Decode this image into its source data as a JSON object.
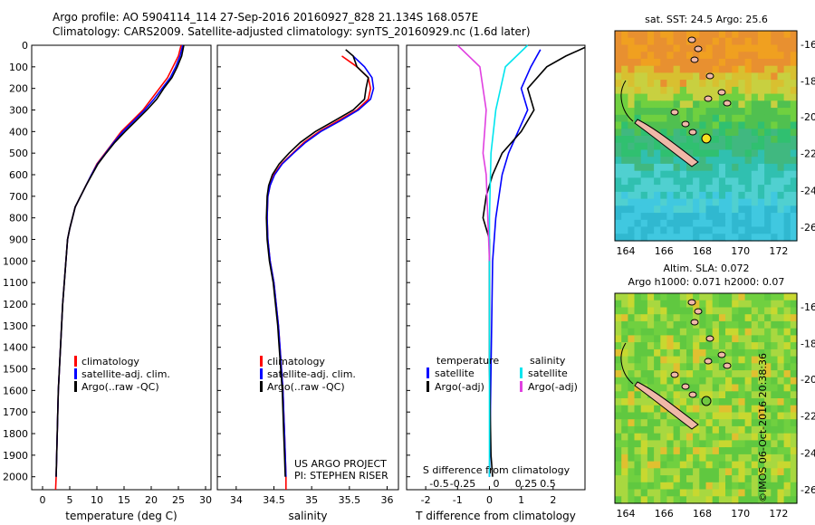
{
  "header": {
    "line1": "Argo profile: AO 5904114_114 27-Sep-2016 20160927_828 21.134S 168.057E",
    "line2": "Climatology: CARS2009. Satellite-adjusted climatology: synTS_20160929.nc (1.6d later)"
  },
  "colors": {
    "climatology": "#ff0000",
    "satellite": "#0000ff",
    "argo": "#000000",
    "sat_salinity": "#00e5ee",
    "argo_salinity": "#e040e0"
  },
  "depth_axis": {
    "ticks": [
      "0",
      "100",
      "200",
      "300",
      "400",
      "500",
      "600",
      "700",
      "800",
      "900",
      "1000",
      "1100",
      "1200",
      "1300",
      "1400",
      "1500",
      "1600",
      "1700",
      "1800",
      "1900",
      "2000"
    ],
    "range": [
      0,
      2060
    ]
  },
  "temp_panel": {
    "xlabel": "temperature (deg C)",
    "xticks": [
      "0",
      "5",
      "10",
      "15",
      "20",
      "25",
      "30"
    ],
    "xlim": [
      -2,
      31
    ],
    "legend": [
      "climatology",
      "satellite-adj. clim.",
      "Argo(..raw -QC)"
    ]
  },
  "sal_panel": {
    "xlabel": "salinity",
    "xticks": [
      "34",
      "34.5",
      "35",
      "35.5",
      "36"
    ],
    "xlim": [
      33.75,
      36.15
    ],
    "legend": [
      "climatology",
      "satellite-adj. clim.",
      "Argo(..raw -QC)"
    ],
    "credit1": "US ARGO PROJECT",
    "credit2": "PI: STEPHEN RISER"
  },
  "diff_panel": {
    "xlabel": "T difference from climatology",
    "xticks": [
      "-2",
      "-1",
      "0",
      "1",
      "2"
    ],
    "xlim": [
      -2.6,
      3.0
    ],
    "s_label": "S difference from climatology",
    "s_ticks": [
      "-0.5",
      "-0.25",
      "0",
      "0.25",
      "0.5"
    ],
    "legend_t_title": "temperature",
    "legend_s_title": "salinity",
    "legend_t": [
      "satellite",
      "Argo(-adj)"
    ],
    "legend_s": [
      "satellite",
      "Argo(-adj)"
    ]
  },
  "map_sst": {
    "title": "sat. SST: 24.5  Argo: 25.6",
    "xticks": [
      "164",
      "166",
      "168",
      "170",
      "172"
    ],
    "yticks": [
      "-16",
      "-18",
      "-20",
      "-22",
      "-24",
      "-26"
    ]
  },
  "map_sla": {
    "title1": "Altim. SLA: 0.072",
    "title2": "Argo h1000: 0.071  h2000: 0.07",
    "xticks": [
      "164",
      "166",
      "168",
      "170",
      "172"
    ],
    "yticks": [
      "-16",
      "-18",
      "-20",
      "-22",
      "-24",
      "-26"
    ]
  },
  "stamp": "©IMOS 06-Oct-2016 20:38:36",
  "chart_data": [
    {
      "type": "line",
      "xlabel": "temperature (deg C)",
      "ylabel": "",
      "xlim": [
        -2,
        31
      ],
      "ylim": [
        2060,
        0
      ],
      "series": [
        {
          "name": "climatology",
          "points": [
            [
              25.5,
              0
            ],
            [
              25,
              50
            ],
            [
              24,
              100
            ],
            [
              23,
              150
            ],
            [
              21.5,
              200
            ],
            [
              20,
              250
            ],
            [
              18.5,
              300
            ],
            [
              16.5,
              350
            ],
            [
              14.5,
              400
            ],
            [
              13,
              450
            ],
            [
              11.5,
              500
            ],
            [
              10,
              550
            ],
            [
              9,
              600
            ],
            [
              8,
              650
            ],
            [
              7,
              700
            ],
            [
              6,
              750
            ],
            [
              5.5,
              800
            ],
            [
              5,
              850
            ],
            [
              4.6,
              900
            ],
            [
              4.3,
              1000
            ],
            [
              4,
              1100
            ],
            [
              3.7,
              1200
            ],
            [
              3.5,
              1300
            ],
            [
              3.3,
              1400
            ],
            [
              3.1,
              1500
            ],
            [
              2.9,
              1600
            ],
            [
              2.8,
              1700
            ],
            [
              2.7,
              1800
            ],
            [
              2.6,
              1900
            ],
            [
              2.5,
              2000
            ],
            [
              2.4,
              2060
            ]
          ]
        },
        {
          "name": "satellite-adj. clim.",
          "points": [
            [
              25.8,
              0
            ],
            [
              25.3,
              50
            ],
            [
              24.5,
              100
            ],
            [
              23.5,
              150
            ],
            [
              22,
              200
            ],
            [
              20.5,
              250
            ],
            [
              18.8,
              300
            ],
            [
              16.8,
              350
            ],
            [
              14.8,
              400
            ],
            [
              13.1,
              450
            ],
            [
              11.6,
              500
            ],
            [
              10.1,
              550
            ],
            [
              9,
              600
            ],
            [
              8,
              650
            ],
            [
              7,
              700
            ],
            [
              6,
              750
            ],
            [
              5.5,
              800
            ],
            [
              5,
              850
            ],
            [
              4.6,
              900
            ],
            [
              4.3,
              1000
            ],
            [
              4,
              1100
            ],
            [
              3.7,
              1200
            ],
            [
              3.5,
              1300
            ],
            [
              3.3,
              1400
            ],
            [
              3.1,
              1500
            ],
            [
              2.9,
              1600
            ],
            [
              2.8,
              1700
            ],
            [
              2.7,
              1800
            ],
            [
              2.6,
              1900
            ],
            [
              2.5,
              2000
            ]
          ]
        },
        {
          "name": "Argo(..raw -QC)",
          "points": [
            [
              26,
              0
            ],
            [
              25.6,
              50
            ],
            [
              24.8,
              100
            ],
            [
              23.8,
              150
            ],
            [
              22.3,
              200
            ],
            [
              21,
              250
            ],
            [
              19.2,
              300
            ],
            [
              17.2,
              350
            ],
            [
              15.2,
              400
            ],
            [
              13.3,
              450
            ],
            [
              11.7,
              500
            ],
            [
              10.2,
              550
            ],
            [
              9.1,
              600
            ],
            [
              8,
              650
            ],
            [
              7,
              700
            ],
            [
              6,
              750
            ],
            [
              5.5,
              800
            ],
            [
              5,
              850
            ],
            [
              4.6,
              900
            ],
            [
              4.3,
              1000
            ],
            [
              4,
              1100
            ],
            [
              3.7,
              1200
            ],
            [
              3.5,
              1300
            ],
            [
              3.3,
              1400
            ],
            [
              3.1,
              1500
            ],
            [
              2.9,
              1600
            ],
            [
              2.8,
              1700
            ],
            [
              2.7,
              1800
            ],
            [
              2.6,
              1900
            ],
            [
              2.5,
              2000
            ]
          ]
        }
      ]
    },
    {
      "type": "line",
      "xlabel": "salinity",
      "ylabel": "",
      "xlim": [
        33.75,
        36.15
      ],
      "ylim": [
        2060,
        0
      ],
      "series": [
        {
          "name": "climatology",
          "points": [
            [
              35.4,
              50
            ],
            [
              35.6,
              100
            ],
            [
              35.75,
              150
            ],
            [
              35.78,
              200
            ],
            [
              35.75,
              250
            ],
            [
              35.6,
              300
            ],
            [
              35.35,
              350
            ],
            [
              35.1,
              400
            ],
            [
              34.9,
              450
            ],
            [
              34.75,
              500
            ],
            [
              34.6,
              550
            ],
            [
              34.5,
              600
            ],
            [
              34.45,
              650
            ],
            [
              34.42,
              700
            ],
            [
              34.41,
              800
            ],
            [
              34.42,
              900
            ],
            [
              34.45,
              1000
            ],
            [
              34.5,
              1100
            ],
            [
              34.53,
              1200
            ],
            [
              34.56,
              1300
            ],
            [
              34.58,
              1400
            ],
            [
              34.6,
              1500
            ],
            [
              34.62,
              1600
            ],
            [
              34.63,
              1700
            ],
            [
              34.64,
              1800
            ],
            [
              34.65,
              1900
            ],
            [
              34.66,
              2000
            ],
            [
              34.66,
              2060
            ]
          ]
        },
        {
          "name": "satellite-adj. clim.",
          "points": [
            [
              35.55,
              50
            ],
            [
              35.7,
              100
            ],
            [
              35.8,
              150
            ],
            [
              35.82,
              200
            ],
            [
              35.78,
              250
            ],
            [
              35.62,
              300
            ],
            [
              35.38,
              350
            ],
            [
              35.12,
              400
            ],
            [
              34.92,
              450
            ],
            [
              34.76,
              500
            ],
            [
              34.61,
              550
            ],
            [
              34.51,
              600
            ],
            [
              34.45,
              650
            ],
            [
              34.42,
              700
            ],
            [
              34.41,
              800
            ],
            [
              34.42,
              900
            ],
            [
              34.45,
              1000
            ],
            [
              34.5,
              1100
            ],
            [
              34.53,
              1200
            ],
            [
              34.56,
              1300
            ],
            [
              34.58,
              1400
            ],
            [
              34.6,
              1500
            ],
            [
              34.62,
              1600
            ],
            [
              34.63,
              1700
            ],
            [
              34.64,
              1800
            ],
            [
              34.65,
              1900
            ],
            [
              34.66,
              2000
            ]
          ]
        },
        {
          "name": "Argo(..raw -QC)",
          "points": [
            [
              35.45,
              20
            ],
            [
              35.55,
              50
            ],
            [
              35.6,
              100
            ],
            [
              35.75,
              150
            ],
            [
              35.72,
              200
            ],
            [
              35.7,
              250
            ],
            [
              35.55,
              300
            ],
            [
              35.3,
              350
            ],
            [
              35.05,
              400
            ],
            [
              34.85,
              450
            ],
            [
              34.7,
              500
            ],
            [
              34.57,
              550
            ],
            [
              34.48,
              600
            ],
            [
              34.43,
              650
            ],
            [
              34.41,
              700
            ],
            [
              34.4,
              800
            ],
            [
              34.41,
              900
            ],
            [
              34.44,
              1000
            ],
            [
              34.49,
              1100
            ],
            [
              34.52,
              1200
            ],
            [
              34.55,
              1300
            ],
            [
              34.57,
              1400
            ],
            [
              34.59,
              1500
            ],
            [
              34.61,
              1600
            ],
            [
              34.62,
              1700
            ],
            [
              34.63,
              1800
            ],
            [
              34.64,
              1900
            ],
            [
              34.65,
              2000
            ]
          ]
        }
      ]
    },
    {
      "type": "line",
      "xlabel": "T difference from climatology",
      "ylabel": "",
      "xlim": [
        -2.6,
        3.0
      ],
      "ylim": [
        2060,
        0
      ],
      "series": [
        {
          "name": "temperature satellite",
          "points": [
            [
              1.6,
              20
            ],
            [
              1.3,
              100
            ],
            [
              1.0,
              200
            ],
            [
              1.2,
              300
            ],
            [
              0.9,
              400
            ],
            [
              0.6,
              500
            ],
            [
              0.4,
              600
            ],
            [
              0.2,
              800
            ],
            [
              0.1,
              1000
            ],
            [
              0.05,
              1500
            ],
            [
              0.0,
              2000
            ]
          ]
        },
        {
          "name": "temperature Argo(-adj)",
          "points": [
            [
              3.0,
              10
            ],
            [
              2.4,
              50
            ],
            [
              1.8,
              100
            ],
            [
              1.2,
              200
            ],
            [
              1.4,
              300
            ],
            [
              1.0,
              400
            ],
            [
              0.4,
              500
            ],
            [
              0.1,
              600
            ],
            [
              -0.1,
              700
            ],
            [
              -0.2,
              800
            ],
            [
              0.0,
              900
            ],
            [
              0.0,
              1000
            ],
            [
              0.0,
              1500
            ],
            [
              0.05,
              1900
            ],
            [
              0.1,
              2000
            ]
          ]
        },
        {
          "name": "salinity satellite",
          "points": [
            [
              1.2,
              0
            ],
            [
              0.5,
              100
            ],
            [
              0.2,
              300
            ],
            [
              0.05,
              500
            ],
            [
              0.0,
              800
            ],
            [
              0.0,
              1200
            ],
            [
              0.0,
              2000
            ]
          ]
        },
        {
          "name": "salinity Argo(-adj)",
          "points": [
            [
              -1.0,
              0
            ],
            [
              -0.3,
              100
            ],
            [
              -0.2,
              200
            ],
            [
              -0.1,
              300
            ],
            [
              -0.15,
              400
            ],
            [
              -0.2,
              500
            ],
            [
              -0.1,
              600
            ],
            [
              -0.05,
              800
            ],
            [
              0.0,
              1000
            ]
          ]
        }
      ]
    }
  ]
}
